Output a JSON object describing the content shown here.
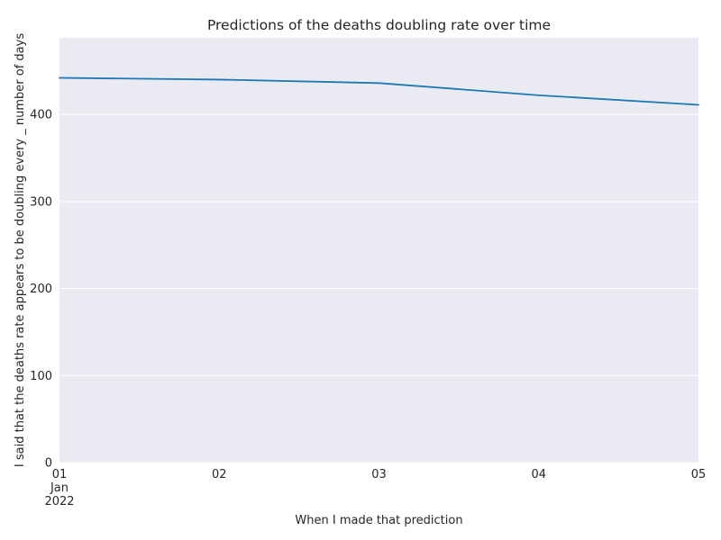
{
  "chart_data": {
    "type": "line",
    "title": "Predictions of the deaths doubling rate over time",
    "xlabel": "When I made that prediction",
    "ylabel": "I said that the deaths rate appears to be doubling every _ number of days",
    "x": [
      "2022-01-01",
      "2022-01-02",
      "2022-01-03",
      "2022-01-04",
      "2022-01-05"
    ],
    "x_tick_labels": [
      {
        "day": "01",
        "month": "Jan",
        "year": "2022"
      },
      {
        "day": "02",
        "month": "",
        "year": ""
      },
      {
        "day": "03",
        "month": "",
        "year": ""
      },
      {
        "day": "04",
        "month": "",
        "year": ""
      },
      {
        "day": "05",
        "month": "",
        "year": ""
      }
    ],
    "series": [
      {
        "values": [
          442,
          440,
          436,
          422,
          411
        ]
      }
    ],
    "ylim": [
      0,
      488
    ],
    "y_ticks": [
      "0",
      "100",
      "200",
      "300",
      "400"
    ],
    "grid": true,
    "colors": {
      "plot_background": "#eaeaf2",
      "grid": "#ffffff",
      "line": "#1f77b4"
    }
  }
}
